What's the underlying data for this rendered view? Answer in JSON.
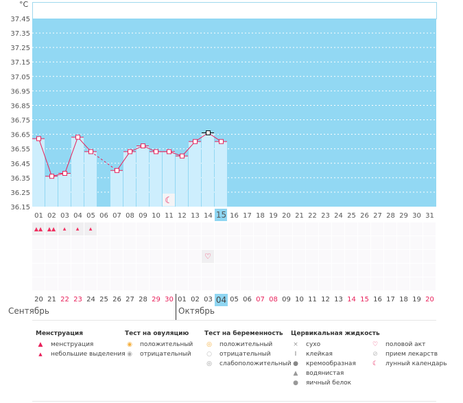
{
  "unit": "°C",
  "chart_data": {
    "type": "bar",
    "ylabel": "°C",
    "ylim": [
      36.15,
      37.45
    ],
    "yticks": [
      "37.45",
      "37.35",
      "37.25",
      "37.15",
      "37.05",
      "36.95",
      "36.85",
      "36.75",
      "36.65",
      "36.55",
      "36.45",
      "36.35",
      "36.25",
      "36.15"
    ],
    "cycle_days": [
      "01",
      "02",
      "03",
      "04",
      "05",
      "06",
      "07",
      "08",
      "09",
      "10",
      "11",
      "12",
      "13",
      "14",
      "15",
      "16",
      "17",
      "18",
      "19",
      "20",
      "21",
      "22",
      "23",
      "24",
      "25",
      "26",
      "27",
      "28",
      "29",
      "30",
      "31"
    ],
    "temperatures": [
      36.62,
      36.36,
      36.38,
      36.63,
      36.53,
      null,
      36.4,
      36.53,
      36.57,
      36.53,
      36.53,
      36.5,
      36.6,
      36.66,
      36.6
    ],
    "selected_day": "15",
    "line_color": "#e8205a",
    "bg_color": "#92d8f3",
    "bar_color": "#cdeefd"
  },
  "moon_day_index": 10,
  "menstruation": [
    "heavy",
    "heavy",
    "light",
    "light",
    "light"
  ],
  "intercourse_day_index": 13,
  "dates": [
    "20",
    "21",
    "22",
    "23",
    "24",
    "25",
    "26",
    "27",
    "28",
    "29",
    "30",
    "01",
    "02",
    "03",
    "04",
    "05",
    "06",
    "07",
    "08",
    "09",
    "10",
    "11",
    "12",
    "13",
    "14",
    "15",
    "16",
    "17",
    "18",
    "19",
    "20"
  ],
  "red_dates": [
    2,
    3,
    9,
    10,
    17,
    18,
    24,
    25,
    30
  ],
  "selected_date_index": 14,
  "months": {
    "first": "Сентябрь",
    "second": "Октябрь"
  },
  "legend": {
    "menstruation": {
      "title": "Менструация",
      "items": [
        "менструация",
        "небольшие выделения"
      ]
    },
    "ovulation": {
      "title": "Тест на овуляцию",
      "items": [
        "положительный",
        "отрицательный"
      ]
    },
    "pregnancy": {
      "title": "Тест на беременность",
      "items": [
        "положительный",
        "отрицательный",
        "слабоположительный"
      ]
    },
    "cervical": {
      "title": "Цервикальная жидкость",
      "items": [
        "сухо",
        "клейкая",
        "кремообразная",
        "водянистая",
        "яичный белок"
      ]
    },
    "other": {
      "items": [
        "половой акт",
        "прием лекарств",
        "лунный календарь"
      ]
    }
  }
}
